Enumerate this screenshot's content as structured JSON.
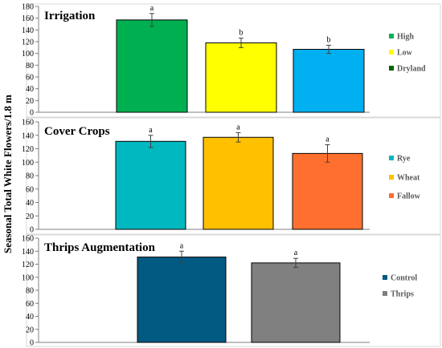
{
  "ylabel": "Seasonal Total White Flowers/1.8 m",
  "chart_data": [
    {
      "type": "bar",
      "title": "Irrigation",
      "categories": [
        "High",
        "Low",
        "Dryland"
      ],
      "values": [
        157,
        118,
        107
      ],
      "errors": [
        11,
        8,
        7
      ],
      "letters": [
        "a",
        "b",
        "b"
      ],
      "colors": [
        "#00b050",
        "#ffff00",
        "#00b0f0"
      ],
      "legend_colors": [
        "#00b050",
        "#ffff00",
        "#006400"
      ],
      "ylim": [
        0,
        180
      ],
      "yticks": [
        0,
        20,
        40,
        60,
        80,
        100,
        120,
        140,
        160,
        180
      ],
      "legend_position": "right"
    },
    {
      "type": "bar",
      "title": "Cover Crops",
      "categories": [
        "Rye",
        "Wheat",
        "Fallow"
      ],
      "values": [
        131,
        137,
        113
      ],
      "errors": [
        9,
        7,
        13
      ],
      "letters": [
        "a",
        "a",
        "a"
      ],
      "colors": [
        "#00b8c0",
        "#ffc000",
        "#ff7030"
      ],
      "legend_colors": [
        "#00b8c0",
        "#ffc000",
        "#ff7030"
      ],
      "ylim": [
        0,
        160
      ],
      "yticks": [
        0,
        20,
        40,
        60,
        80,
        100,
        120,
        140,
        160
      ],
      "legend_position": "right"
    },
    {
      "type": "bar",
      "title": "Thrips Augmentation",
      "categories": [
        "Control",
        "Thrips"
      ],
      "values": [
        131,
        122
      ],
      "errors": [
        9,
        7
      ],
      "letters": [
        "a",
        "a"
      ],
      "colors": [
        "#005a82",
        "#808080"
      ],
      "legend_colors": [
        "#005a82",
        "#808080"
      ],
      "ylim": [
        0,
        160
      ],
      "yticks": [
        0,
        20,
        40,
        60,
        80,
        100,
        120,
        140,
        160
      ],
      "legend_position": "right"
    }
  ]
}
